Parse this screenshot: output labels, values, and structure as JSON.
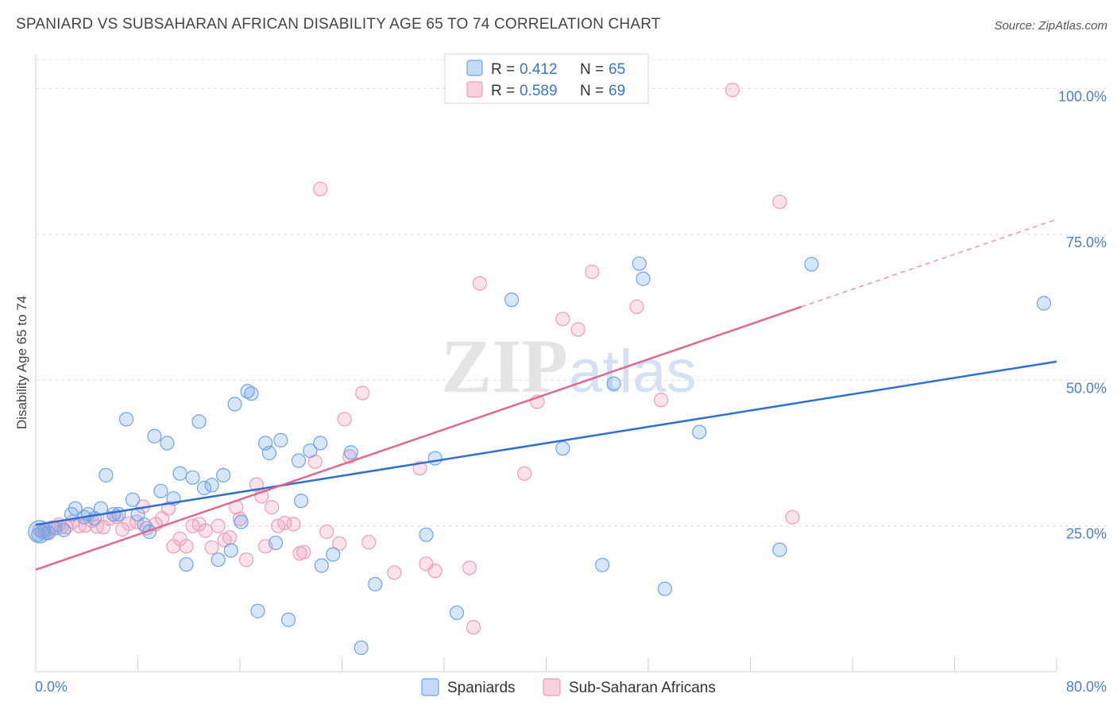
{
  "title": "SPANIARD VS SUBSAHARAN AFRICAN DISABILITY AGE 65 TO 74 CORRELATION CHART",
  "source": "Source: ZipAtlas.com",
  "watermark": {
    "zip": "ZIP",
    "atlas": "atlas"
  },
  "colors": {
    "blue": "#6ea4e8",
    "blue_line": "#2f6fcf",
    "pink": "#f29ab8",
    "pink_line": "#e0678f",
    "axis_text": "#4a7fd0"
  },
  "stats_box": {
    "rows": [
      {
        "r_label": "R =",
        "r_value": "0.412",
        "n_label": "N =",
        "n_value": "65"
      },
      {
        "r_label": "R =",
        "r_value": "0.589",
        "n_label": "N =",
        "n_value": "69"
      }
    ]
  },
  "legend": {
    "items": [
      "Spaniards",
      "Sub-Saharan Africans"
    ]
  },
  "chart_data": {
    "type": "scatter",
    "xlabel": "",
    "ylabel": "Disability Age 65 to 74",
    "xlim": [
      0,
      80
    ],
    "ylim": [
      0,
      105
    ],
    "x_tick_labels": [
      "0.0%",
      "80.0%"
    ],
    "y_ticks": [
      25,
      50,
      75,
      100
    ],
    "y_tick_labels": [
      "25.0%",
      "50.0%",
      "75.0%",
      "100.0%"
    ],
    "grid": true,
    "legend_position": "bottom-center",
    "series": [
      {
        "name": "Spaniards",
        "r": 0.412,
        "n": 65,
        "trend": {
          "x0": 0,
          "y0": 25.2,
          "x1": 80,
          "y1": 53.2
        },
        "points": [
          [
            0.2,
            23.5
          ],
          [
            0.5,
            24.0
          ],
          [
            1.0,
            23.8
          ],
          [
            1.5,
            24.6
          ],
          [
            2.2,
            24.3
          ],
          [
            2.8,
            27.0
          ],
          [
            3.1,
            28.0
          ],
          [
            3.8,
            26.5
          ],
          [
            4.1,
            27.0
          ],
          [
            4.6,
            26.3
          ],
          [
            5.1,
            28.0
          ],
          [
            5.5,
            33.7
          ],
          [
            6.1,
            27.0
          ],
          [
            6.5,
            27.0
          ],
          [
            7.1,
            43.3
          ],
          [
            7.6,
            29.5
          ],
          [
            8.0,
            27.0
          ],
          [
            8.5,
            25.2
          ],
          [
            8.9,
            24.0
          ],
          [
            9.3,
            40.4
          ],
          [
            9.8,
            31.0
          ],
          [
            10.3,
            39.2
          ],
          [
            10.8,
            29.7
          ],
          [
            11.3,
            34.0
          ],
          [
            11.8,
            18.4
          ],
          [
            12.3,
            33.3
          ],
          [
            12.8,
            42.9
          ],
          [
            13.2,
            31.5
          ],
          [
            13.8,
            32.0
          ],
          [
            14.3,
            19.2
          ],
          [
            14.7,
            33.7
          ],
          [
            15.3,
            20.8
          ],
          [
            15.6,
            45.9
          ],
          [
            16.1,
            25.7
          ],
          [
            16.6,
            48.1
          ],
          [
            16.9,
            47.7
          ],
          [
            17.4,
            10.4
          ],
          [
            18.0,
            39.2
          ],
          [
            18.3,
            37.5
          ],
          [
            18.8,
            22.1
          ],
          [
            19.2,
            39.7
          ],
          [
            19.8,
            8.9
          ],
          [
            20.6,
            36.2
          ],
          [
            20.8,
            29.3
          ],
          [
            21.5,
            37.9
          ],
          [
            22.3,
            39.2
          ],
          [
            22.4,
            18.2
          ],
          [
            23.3,
            20.1
          ],
          [
            24.7,
            37.6
          ],
          [
            25.5,
            4.1
          ],
          [
            26.6,
            15.0
          ],
          [
            30.6,
            23.5
          ],
          [
            31.3,
            36.6
          ],
          [
            33.0,
            10.1
          ],
          [
            37.3,
            63.8
          ],
          [
            41.3,
            38.3
          ],
          [
            44.4,
            18.3
          ],
          [
            45.3,
            49.4
          ],
          [
            47.3,
            70.0
          ],
          [
            47.6,
            67.4
          ],
          [
            49.3,
            14.2
          ],
          [
            52.0,
            41.1
          ],
          [
            58.3,
            20.9
          ],
          [
            60.8,
            69.9
          ],
          [
            79.0,
            63.2
          ]
        ]
      },
      {
        "name": "Sub-Saharan Africans",
        "r": 0.589,
        "n": 69,
        "trend": {
          "x0": 0,
          "y0": 17.5,
          "x1": 60,
          "y1": 62.6,
          "dash_to_x": 80,
          "dash_to_y": 77.6
        },
        "points": [
          [
            0.3,
            24.3
          ],
          [
            0.8,
            23.8
          ],
          [
            1.3,
            24.7
          ],
          [
            1.8,
            25.2
          ],
          [
            2.4,
            24.8
          ],
          [
            2.9,
            25.7
          ],
          [
            3.4,
            25.0
          ],
          [
            3.9,
            25.1
          ],
          [
            4.4,
            25.9
          ],
          [
            4.8,
            24.9
          ],
          [
            5.3,
            24.8
          ],
          [
            5.8,
            26.3
          ],
          [
            6.3,
            26.6
          ],
          [
            6.8,
            24.4
          ],
          [
            7.3,
            25.4
          ],
          [
            7.9,
            25.7
          ],
          [
            8.4,
            28.3
          ],
          [
            8.7,
            24.6
          ],
          [
            9.4,
            25.3
          ],
          [
            9.9,
            26.3
          ],
          [
            10.4,
            28.0
          ],
          [
            10.8,
            21.5
          ],
          [
            11.3,
            22.8
          ],
          [
            11.8,
            21.5
          ],
          [
            12.3,
            25.0
          ],
          [
            12.8,
            25.3
          ],
          [
            13.3,
            24.2
          ],
          [
            13.8,
            21.3
          ],
          [
            14.3,
            25.0
          ],
          [
            14.8,
            22.6
          ],
          [
            15.2,
            23.0
          ],
          [
            15.7,
            28.2
          ],
          [
            16.0,
            26.2
          ],
          [
            16.5,
            19.2
          ],
          [
            17.3,
            32.1
          ],
          [
            17.7,
            30.1
          ],
          [
            18.0,
            21.5
          ],
          [
            18.5,
            28.2
          ],
          [
            19.0,
            25.0
          ],
          [
            19.5,
            25.5
          ],
          [
            20.2,
            25.3
          ],
          [
            20.7,
            20.3
          ],
          [
            21.0,
            20.5
          ],
          [
            21.9,
            36.0
          ],
          [
            22.3,
            82.8
          ],
          [
            22.8,
            24.0
          ],
          [
            23.8,
            22.0
          ],
          [
            24.2,
            43.3
          ],
          [
            24.6,
            36.9
          ],
          [
            25.6,
            47.8
          ],
          [
            26.1,
            22.2
          ],
          [
            28.1,
            17.0
          ],
          [
            30.1,
            34.9
          ],
          [
            30.6,
            18.5
          ],
          [
            31.3,
            17.3
          ],
          [
            34.0,
            17.8
          ],
          [
            34.3,
            7.6
          ],
          [
            34.8,
            66.6
          ],
          [
            38.3,
            34.0
          ],
          [
            39.3,
            46.3
          ],
          [
            41.3,
            60.5
          ],
          [
            42.5,
            58.7
          ],
          [
            43.6,
            68.6
          ],
          [
            47.1,
            62.6
          ],
          [
            49.0,
            46.6
          ],
          [
            54.6,
            99.8
          ],
          [
            58.3,
            80.6
          ],
          [
            59.3,
            26.5
          ],
          [
            2.0,
            24.8
          ]
        ]
      }
    ]
  }
}
